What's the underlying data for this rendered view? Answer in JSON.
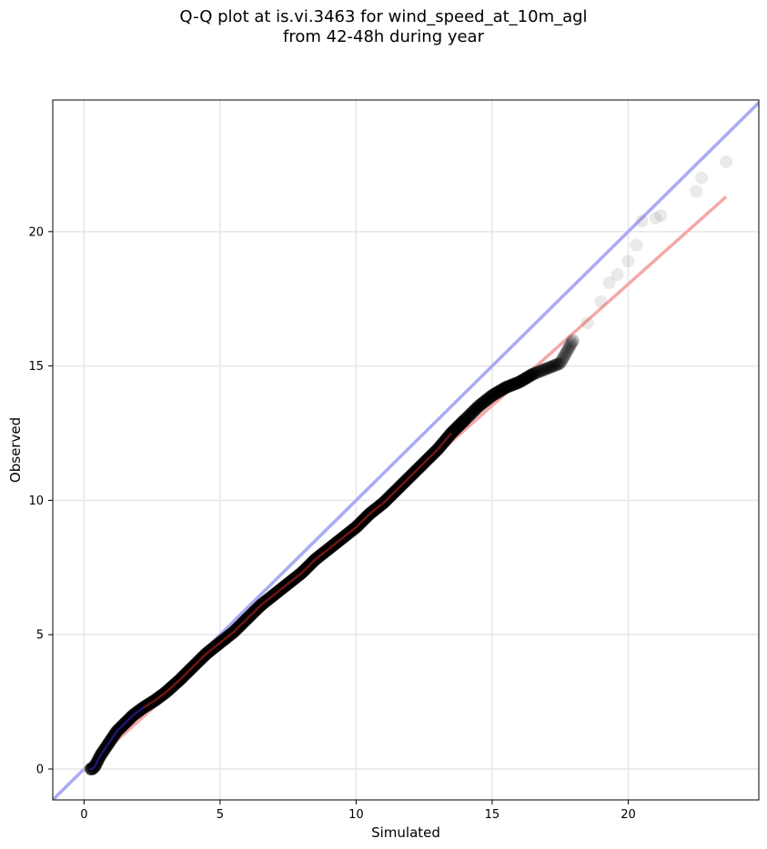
{
  "figure": {
    "title_line1": "Q-Q plot at is.vi.3463 for wind_speed_at_10m_agl",
    "title_line2": "from 42-48h during year"
  },
  "chart_data": {
    "type": "scatter",
    "xlabel": "Simulated",
    "ylabel": "Observed",
    "xlim": [
      -1.15,
      24.8
    ],
    "ylim": [
      -1.15,
      24.9
    ],
    "xticks": [
      0,
      5,
      10,
      15,
      20
    ],
    "yticks": [
      0,
      5,
      10,
      15,
      20
    ],
    "xtick_labels": [
      "0",
      "5",
      "10",
      "15",
      "20"
    ],
    "ytick_labels": [
      "0",
      "5",
      "10",
      "15",
      "20"
    ],
    "grid": true,
    "reference_line": {
      "kind": "y = x",
      "color": "#aaaaf5"
    },
    "fit_line": {
      "x": [
        0.0,
        23.6
      ],
      "y": [
        -0.02,
        21.3
      ],
      "color": "#f5a8a8"
    },
    "dense_segment_color": "#8b1a1a",
    "low_segment_color": "#2b1a8f",
    "points": [
      [
        0.2,
        0.0
      ],
      [
        0.3,
        0.0
      ],
      [
        0.35,
        0.05
      ],
      [
        0.4,
        0.1
      ],
      [
        0.5,
        0.3
      ],
      [
        0.6,
        0.5
      ],
      [
        0.8,
        0.8
      ],
      [
        1.0,
        1.1
      ],
      [
        1.2,
        1.4
      ],
      [
        1.5,
        1.7
      ],
      [
        1.8,
        2.0
      ],
      [
        2.2,
        2.3
      ],
      [
        2.6,
        2.55
      ],
      [
        3.0,
        2.85
      ],
      [
        3.5,
        3.3
      ],
      [
        4.0,
        3.8
      ],
      [
        4.5,
        4.3
      ],
      [
        5.0,
        4.7
      ],
      [
        5.5,
        5.1
      ],
      [
        6.0,
        5.6
      ],
      [
        6.5,
        6.1
      ],
      [
        7.0,
        6.5
      ],
      [
        7.5,
        6.9
      ],
      [
        8.0,
        7.3
      ],
      [
        8.5,
        7.8
      ],
      [
        9.0,
        8.2
      ],
      [
        9.5,
        8.6
      ],
      [
        10.0,
        9.0
      ],
      [
        10.5,
        9.5
      ],
      [
        11.0,
        9.9
      ],
      [
        11.5,
        10.4
      ],
      [
        12.0,
        10.9
      ],
      [
        12.5,
        11.4
      ],
      [
        13.0,
        11.9
      ],
      [
        13.5,
        12.5
      ],
      [
        14.0,
        13.0
      ],
      [
        14.5,
        13.5
      ],
      [
        15.0,
        13.9
      ],
      [
        15.5,
        14.2
      ],
      [
        16.0,
        14.4
      ],
      [
        16.5,
        14.7
      ],
      [
        17.0,
        14.9
      ],
      [
        17.5,
        15.1
      ],
      [
        18.0,
        16.0
      ],
      [
        18.5,
        16.6
      ],
      [
        19.0,
        17.4
      ],
      [
        19.3,
        18.1
      ],
      [
        19.6,
        18.4
      ],
      [
        20.0,
        18.9
      ],
      [
        20.3,
        19.5
      ],
      [
        20.5,
        20.4
      ],
      [
        21.0,
        20.5
      ],
      [
        21.2,
        20.6
      ],
      [
        22.5,
        21.5
      ],
      [
        22.7,
        22.0
      ],
      [
        23.6,
        22.6
      ]
    ]
  }
}
